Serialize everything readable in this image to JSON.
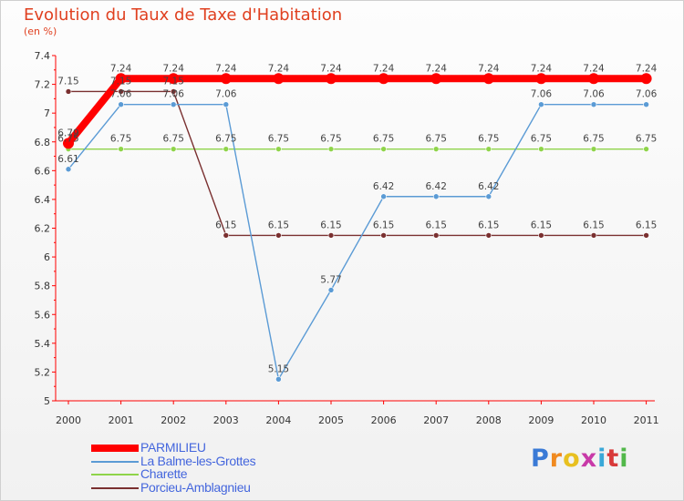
{
  "chart_data": {
    "type": "line",
    "title": "Evolution du Taux de Taxe d'Habitation",
    "subtitle": "(en %)",
    "categories": [
      "2000",
      "2001",
      "2002",
      "2003",
      "2004",
      "2005",
      "2006",
      "2007",
      "2008",
      "2009",
      "2010",
      "2011"
    ],
    "ylim": [
      5,
      7.4
    ],
    "yticks": [
      "5",
      "5.2",
      "5.4",
      "5.6",
      "5.8",
      "6",
      "6.2",
      "6.4",
      "6.6",
      "6.8",
      "7",
      "7.2",
      "7.4"
    ],
    "grid": false,
    "legend_position": "bottom-left",
    "series": [
      {
        "name": "PARMILIEU",
        "color": "#ff0000",
        "values": [
          6.79,
          7.24,
          7.24,
          7.24,
          7.24,
          7.24,
          7.24,
          7.24,
          7.24,
          7.24,
          7.24,
          7.24
        ],
        "labels": [
          "6.79",
          "7.24",
          "7.24",
          "7.24",
          "7.24",
          "7.24",
          "7.24",
          "7.24",
          "7.24",
          "7.24",
          "7.24",
          "7.24"
        ]
      },
      {
        "name": "La Balme-les-Grottes",
        "color": "#5b9bd5",
        "values": [
          6.61,
          7.06,
          7.06,
          7.06,
          5.15,
          5.77,
          6.42,
          6.42,
          6.42,
          7.06,
          7.06,
          7.06
        ],
        "labels": [
          "6.61",
          "7.06",
          "7.06",
          "7.06",
          "5.15",
          "5.77",
          "6.42",
          "6.42",
          "6.42",
          "7.06",
          "7.06",
          "7.06"
        ]
      },
      {
        "name": "Charette",
        "color": "#8fd44a",
        "values": [
          6.75,
          6.75,
          6.75,
          6.75,
          6.75,
          6.75,
          6.75,
          6.75,
          6.75,
          6.75,
          6.75,
          6.75
        ],
        "labels": [
          "6.75",
          "6.75",
          "6.75",
          "6.75",
          "6.75",
          "6.75",
          "6.75",
          "6.75",
          "6.75",
          "6.75",
          "6.75",
          "6.75"
        ]
      },
      {
        "name": "Porcieu-Amblagnieu",
        "color": "#7a3030",
        "values": [
          7.15,
          7.15,
          7.15,
          6.15,
          6.15,
          6.15,
          6.15,
          6.15,
          6.15,
          6.15,
          6.15,
          6.15
        ],
        "labels": [
          "7.15",
          "7.15",
          "7.15",
          "6.15",
          "6.15",
          "6.15",
          "6.15",
          "6.15",
          "6.15",
          "6.15",
          "6.15",
          "6.15"
        ]
      }
    ]
  },
  "logo": {
    "letters": [
      "P",
      "r",
      "o",
      "x",
      "i",
      "t",
      "i"
    ],
    "colors": [
      "#3a7ad6",
      "#f08a20",
      "#e8c020",
      "#c83aa8",
      "#3aa8d8",
      "#d83a3a",
      "#52b84a"
    ]
  }
}
